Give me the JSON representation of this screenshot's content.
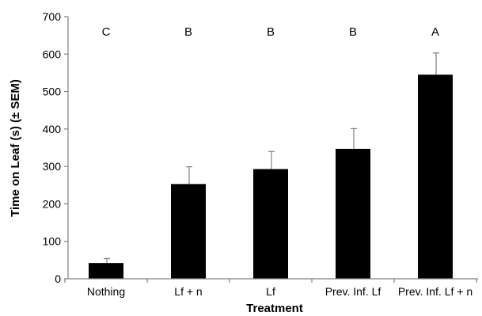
{
  "chart_data": {
    "type": "bar",
    "title": "",
    "xlabel": "Treatment",
    "ylabel": "Time on Leaf (s) (± SEM)",
    "ylim": [
      0,
      700
    ],
    "yticks": [
      "0",
      "100",
      "200",
      "300",
      "400",
      "500",
      "600",
      "700"
    ],
    "ytick_values": [
      0,
      100,
      200,
      300,
      400,
      500,
      600,
      700
    ],
    "categories": [
      "Nothing",
      "Lf + n",
      "Lf",
      "Prev. Inf. Lf",
      "Prev. Inf. Lf + n"
    ],
    "values": [
      42,
      253,
      293,
      347,
      545
    ],
    "error_upper": [
      12,
      46,
      47,
      54,
      58
    ],
    "significance_letters": [
      "C",
      "B",
      "B",
      "B",
      "A"
    ],
    "grid": false,
    "legend": "none",
    "colors": {
      "bar": "#000000",
      "axis": "#808080",
      "text": "#000000"
    }
  }
}
